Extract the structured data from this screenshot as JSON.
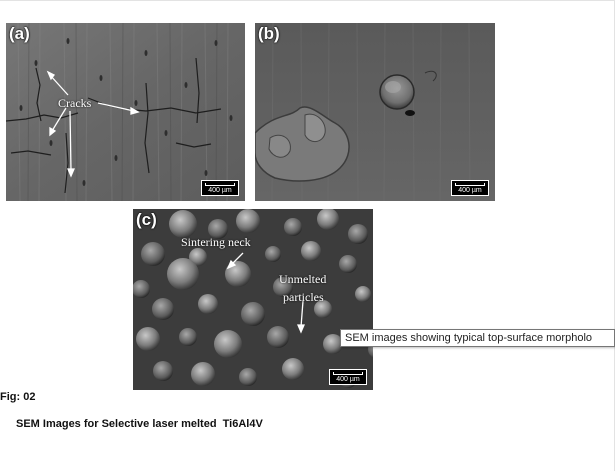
{
  "figure": {
    "number_label": "Fig: 02",
    "caption": "SEM Images for Selective laser melted  Ti6Al4V"
  },
  "panels": [
    {
      "letter": "(a)",
      "scale_label": "400 µm",
      "annotations": [
        "Cracks"
      ]
    },
    {
      "letter": "(b)",
      "scale_label": "400 µm",
      "annotations": []
    },
    {
      "letter": "(c)",
      "scale_label": "400 µm",
      "annotations": [
        "Sintering neck",
        "Unmelted",
        "particles"
      ]
    }
  ],
  "tooltip": {
    "text": "SEM images showing typical top-surface morpholo"
  },
  "colors": {
    "sem_background_a": "#6b6b6b",
    "sem_background_b": "#5f5f5f",
    "sem_background_c": "#4a4a4a",
    "caption_text": "#111111"
  }
}
